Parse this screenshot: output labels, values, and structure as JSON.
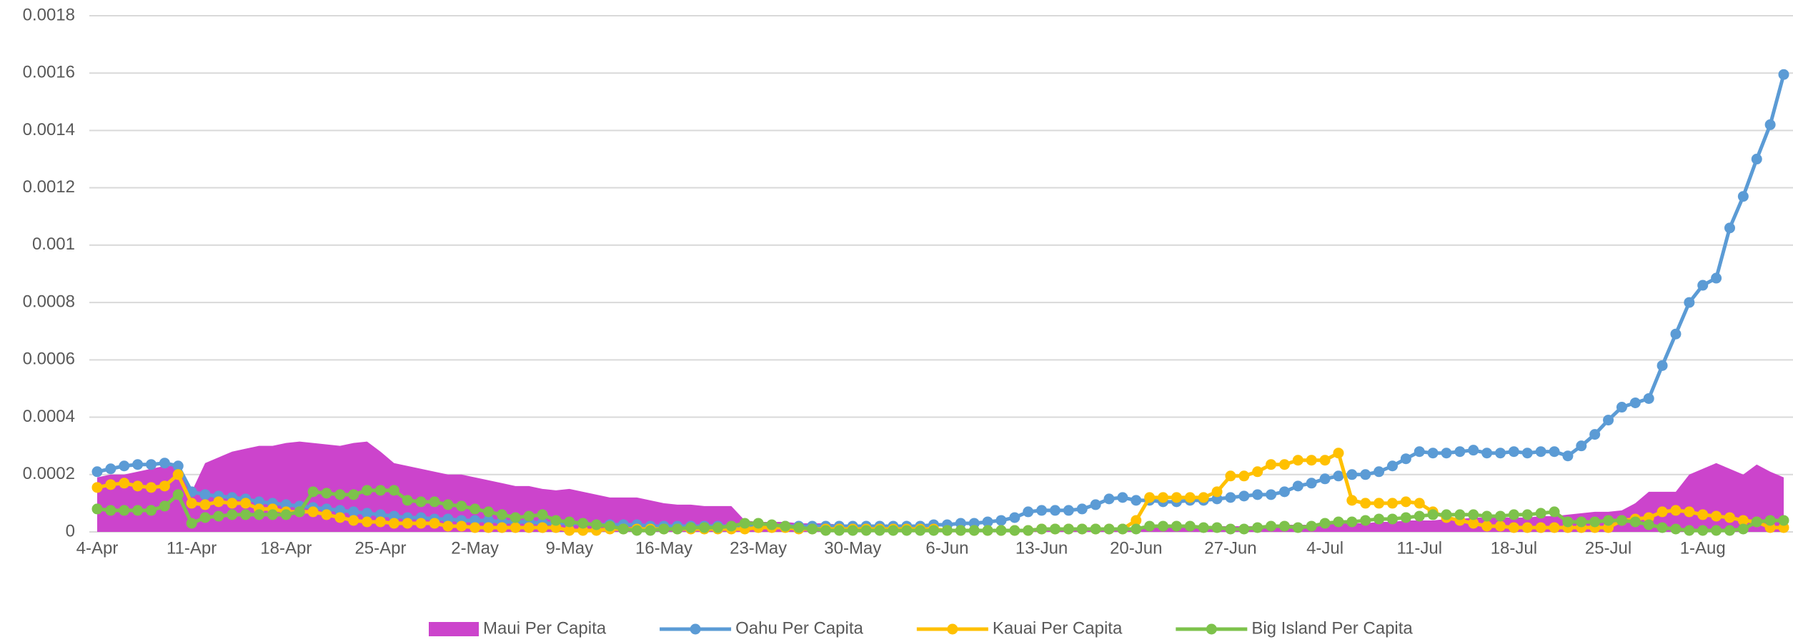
{
  "chart_data": {
    "type": "line",
    "categories": [
      "4-Apr",
      null,
      null,
      null,
      null,
      null,
      null,
      "11-Apr",
      null,
      null,
      null,
      null,
      null,
      null,
      "18-Apr",
      null,
      null,
      null,
      null,
      null,
      null,
      "25-Apr",
      null,
      null,
      null,
      null,
      null,
      null,
      "2-May",
      null,
      null,
      null,
      null,
      null,
      null,
      "9-May",
      null,
      null,
      null,
      null,
      null,
      null,
      "16-May",
      null,
      null,
      null,
      null,
      null,
      null,
      "23-May",
      null,
      null,
      null,
      null,
      null,
      null,
      "30-May",
      null,
      null,
      null,
      null,
      null,
      null,
      "6-Jun",
      null,
      null,
      null,
      null,
      null,
      null,
      "13-Jun",
      null,
      null,
      null,
      null,
      null,
      null,
      "20-Jun",
      null,
      null,
      null,
      null,
      null,
      null,
      "27-Jun",
      null,
      null,
      null,
      null,
      null,
      null,
      "4-Jul",
      null,
      null,
      null,
      null,
      null,
      null,
      "11-Jul",
      null,
      null,
      null,
      null,
      null,
      null,
      "18-Jul",
      null,
      null,
      null,
      null,
      null,
      null,
      "25-Jul",
      null,
      null,
      null,
      null,
      null,
      null,
      "1-Aug",
      null,
      null,
      null,
      null,
      null,
      null
    ],
    "series": [
      {
        "name": "Maui Per Capita",
        "kind": "area",
        "color": "#cc44cc",
        "values": [
          0.00019,
          0.0002,
          0.0002,
          0.00021,
          0.00022,
          0.00023,
          0.00023,
          0.00014,
          0.00024,
          0.00026,
          0.00028,
          0.00029,
          0.0003,
          0.0003,
          0.00031,
          0.000315,
          0.00031,
          0.000305,
          0.0003,
          0.00031,
          0.000315,
          0.00028,
          0.00024,
          0.00023,
          0.00022,
          0.00021,
          0.0002,
          0.0002,
          0.00019,
          0.00018,
          0.00017,
          0.00016,
          0.00016,
          0.00015,
          0.000145,
          0.00015,
          0.00014,
          0.00013,
          0.00012,
          0.00012,
          0.00012,
          0.00011,
          0.0001,
          9.5e-05,
          9.5e-05,
          9e-05,
          9e-05,
          9e-05,
          4e-05,
          3.5e-05,
          3.5e-05,
          3.5e-05,
          3e-05,
          3e-05,
          3e-05,
          2.5e-05,
          2.5e-05,
          2e-05,
          2e-05,
          2e-05,
          1.5e-05,
          1.5e-05,
          1.5e-05,
          1e-05,
          1e-05,
          1e-05,
          1e-05,
          1e-05,
          1e-05,
          1e-05,
          1e-05,
          1e-05,
          1e-05,
          1e-05,
          1.5e-05,
          1.5e-05,
          1.5e-05,
          1.5e-05,
          1.5e-05,
          1.5e-05,
          1.5e-05,
          1.5e-05,
          2e-05,
          2e-05,
          2e-05,
          2e-05,
          2e-05,
          2.5e-05,
          2.5e-05,
          2.5e-05,
          2.5e-05,
          3e-05,
          3e-05,
          3e-05,
          3e-05,
          3.5e-05,
          3.5e-05,
          4e-05,
          4e-05,
          4e-05,
          4.5e-05,
          4.5e-05,
          5e-05,
          5e-05,
          5e-05,
          5e-05,
          5e-05,
          5.5e-05,
          5.5e-05,
          6e-05,
          6.5e-05,
          7e-05,
          7e-05,
          7.5e-05,
          0.0001,
          0.00014,
          0.00014,
          0.00014,
          0.0002,
          0.00022,
          0.00024,
          0.00022,
          0.0002,
          0.000235,
          0.00021,
          0.00019
        ]
      },
      {
        "name": "Oahu Per Capita",
        "kind": "line",
        "color": "#5b9bd5",
        "values": [
          0.00021,
          0.00022,
          0.00023,
          0.000235,
          0.000235,
          0.00024,
          0.00023,
          0.00014,
          0.00013,
          0.000125,
          0.00012,
          0.000115,
          0.000105,
          0.0001,
          9.5e-05,
          9e-05,
          8.5e-05,
          8e-05,
          7.5e-05,
          7e-05,
          6.5e-05,
          6e-05,
          5.5e-05,
          5e-05,
          5e-05,
          4.5e-05,
          4.5e-05,
          4e-05,
          4e-05,
          4e-05,
          3.5e-05,
          3.5e-05,
          3.5e-05,
          3e-05,
          3e-05,
          3e-05,
          3e-05,
          2.5e-05,
          2.5e-05,
          2.5e-05,
          2.5e-05,
          2e-05,
          2e-05,
          2e-05,
          2e-05,
          2e-05,
          2e-05,
          2e-05,
          2e-05,
          2e-05,
          2e-05,
          2e-05,
          2e-05,
          2e-05,
          2e-05,
          2e-05,
          2e-05,
          2e-05,
          2e-05,
          2e-05,
          2e-05,
          2e-05,
          2.5e-05,
          2.5e-05,
          3e-05,
          3e-05,
          3.5e-05,
          4e-05,
          5e-05,
          7e-05,
          7.5e-05,
          7.5e-05,
          7.5e-05,
          8e-05,
          9.5e-05,
          0.000115,
          0.00012,
          0.00011,
          0.00011,
          0.000105,
          0.000105,
          0.00011,
          0.00011,
          0.000115,
          0.00012,
          0.000125,
          0.00013,
          0.00013,
          0.00014,
          0.00016,
          0.00017,
          0.000185,
          0.000195,
          0.0002,
          0.0002,
          0.00021,
          0.00023,
          0.000255,
          0.00028,
          0.000275,
          0.000275,
          0.00028,
          0.000285,
          0.000275,
          0.000275,
          0.00028,
          0.000275,
          0.00028,
          0.00028,
          0.000265,
          0.0003,
          0.00034,
          0.00039,
          0.000435,
          0.00045,
          0.000465,
          0.00058,
          0.00069,
          0.0008,
          0.00086,
          0.000885,
          0.00106,
          0.00117,
          0.0013,
          0.00142,
          0.001595
        ]
      },
      {
        "name": "Kauai Per Capita",
        "kind": "line",
        "color": "#ffc000",
        "values": [
          0.000155,
          0.000165,
          0.00017,
          0.00016,
          0.000155,
          0.00016,
          0.0002,
          0.0001,
          9.5e-05,
          0.000105,
          0.0001,
          0.0001,
          8e-05,
          8e-05,
          7e-05,
          7e-05,
          7e-05,
          6e-05,
          5e-05,
          4e-05,
          3.5e-05,
          3.5e-05,
          3e-05,
          3e-05,
          3e-05,
          3e-05,
          2e-05,
          2e-05,
          1.5e-05,
          1.5e-05,
          1.5e-05,
          1.5e-05,
          1.5e-05,
          1.5e-05,
          1.5e-05,
          5e-06,
          5e-06,
          5e-06,
          1e-05,
          1e-05,
          1e-05,
          1e-05,
          1e-05,
          1e-05,
          1e-05,
          1e-05,
          1e-05,
          1e-05,
          1e-05,
          1.5e-05,
          1.5e-05,
          1.5e-05,
          1e-05,
          1e-05,
          1e-05,
          1e-05,
          1e-05,
          1e-05,
          1e-05,
          1e-05,
          1e-05,
          1e-05,
          1e-05,
          5e-06,
          5e-06,
          5e-06,
          5e-06,
          5e-06,
          5e-06,
          5e-06,
          1e-05,
          1e-05,
          1e-05,
          1e-05,
          1e-05,
          1e-05,
          1e-05,
          4e-05,
          0.00012,
          0.00012,
          0.00012,
          0.00012,
          0.00012,
          0.00014,
          0.000195,
          0.000195,
          0.00021,
          0.000235,
          0.000235,
          0.00025,
          0.00025,
          0.00025,
          0.000275,
          0.00011,
          0.0001,
          0.0001,
          0.0001,
          0.000105,
          0.0001,
          7e-05,
          5e-05,
          4e-05,
          3e-05,
          2e-05,
          2e-05,
          1.5e-05,
          1.5e-05,
          1.5e-05,
          1.5e-05,
          1.5e-05,
          1.5e-05,
          1.5e-05,
          1.5e-05,
          4e-05,
          4.5e-05,
          5e-05,
          7e-05,
          7.5e-05,
          7e-05,
          6e-05,
          5.5e-05,
          5e-05,
          4e-05,
          3.5e-05,
          1.5e-05,
          1.5e-05
        ]
      },
      {
        "name": "Big Island Per Capita",
        "kind": "line",
        "color": "#7dc24b",
        "values": [
          8e-05,
          7.5e-05,
          7.5e-05,
          7.5e-05,
          7.5e-05,
          9e-05,
          0.00013,
          3e-05,
          5e-05,
          5.5e-05,
          6e-05,
          6e-05,
          6e-05,
          6e-05,
          6e-05,
          7e-05,
          0.00014,
          0.000135,
          0.00013,
          0.00013,
          0.000145,
          0.000145,
          0.000145,
          0.00011,
          0.000105,
          0.000105,
          9.5e-05,
          9e-05,
          8e-05,
          7e-05,
          6e-05,
          5e-05,
          5.5e-05,
          6e-05,
          4e-05,
          3.5e-05,
          3e-05,
          2.5e-05,
          2e-05,
          1e-05,
          5e-06,
          5e-06,
          1e-05,
          1e-05,
          1.5e-05,
          1.5e-05,
          1.5e-05,
          2e-05,
          3e-05,
          3e-05,
          2.5e-05,
          2e-05,
          1.5e-05,
          1e-05,
          5e-06,
          5e-06,
          5e-06,
          5e-06,
          5e-06,
          5e-06,
          5e-06,
          5e-06,
          5e-06,
          5e-06,
          5e-06,
          5e-06,
          5e-06,
          5e-06,
          5e-06,
          5e-06,
          1e-05,
          1e-05,
          1e-05,
          1e-05,
          1e-05,
          1e-05,
          1e-05,
          1e-05,
          2e-05,
          2e-05,
          2e-05,
          2e-05,
          1.5e-05,
          1.5e-05,
          1e-05,
          1e-05,
          1.5e-05,
          2e-05,
          2e-05,
          1.5e-05,
          2e-05,
          3e-05,
          3.5e-05,
          3.5e-05,
          4e-05,
          4.5e-05,
          4.5e-05,
          5e-05,
          5.5e-05,
          6e-05,
          6e-05,
          6e-05,
          6e-05,
          5.5e-05,
          5.5e-05,
          6e-05,
          6e-05,
          6.5e-05,
          7e-05,
          3.5e-05,
          3.5e-05,
          3.5e-05,
          4e-05,
          4e-05,
          3.5e-05,
          2.5e-05,
          1.5e-05,
          1e-05,
          5e-06,
          5e-06,
          5e-06,
          5e-06,
          1e-05,
          3.5e-05,
          4e-05,
          4e-05
        ]
      }
    ],
    "ylim": [
      0,
      0.0018
    ],
    "yticks": [
      0,
      0.0002,
      0.0004,
      0.0006,
      0.0008,
      0.001,
      0.0012,
      0.0014,
      0.0016,
      0.0018
    ],
    "grid": true,
    "legend": "bottom"
  }
}
